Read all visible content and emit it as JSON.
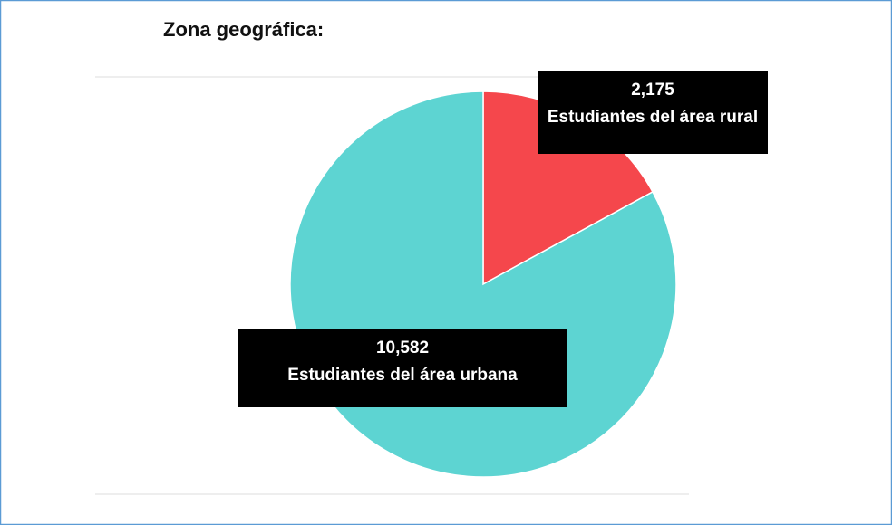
{
  "chart_data": {
    "type": "pie",
    "title": "Zona geográfica:",
    "categories": [
      "Estudiantes del área rural",
      "Estudiantes del área urbana"
    ],
    "values": [
      2175,
      10582
    ],
    "value_labels": [
      "2,175",
      "10,582"
    ],
    "colors": [
      "#f5474c",
      "#5dd4d2"
    ]
  }
}
